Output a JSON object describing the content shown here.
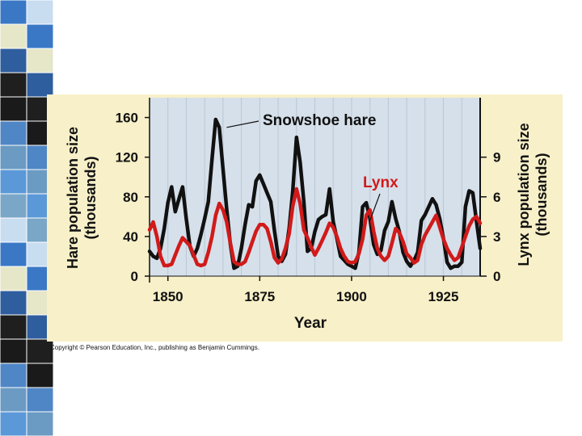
{
  "chart_data": {
    "type": "line",
    "xlabel": "Year",
    "ylabel_left": "Hare population size (thousands)",
    "ylabel_left_lines": [
      "Hare population size",
      "(thousands)"
    ],
    "ylabel_right": "Lynx population size (thousands)",
    "ylabel_right_lines": [
      "Lynx population size",
      "(thousands)"
    ],
    "xlim": [
      1845,
      1935
    ],
    "ylim_left": [
      0,
      180
    ],
    "ylim_right": [
      0,
      13.5
    ],
    "x_ticks": [
      1850,
      1875,
      1900,
      1925
    ],
    "y_ticks_left": [
      0,
      40,
      80,
      120,
      160
    ],
    "y_ticks_right": [
      0,
      3,
      6,
      9
    ],
    "series": [
      {
        "name": "Snowshoe hare",
        "axis": "left",
        "color": "#111111",
        "x": [
          1845,
          1846,
          1847,
          1848,
          1849,
          1850,
          1851,
          1852,
          1853,
          1854,
          1855,
          1856,
          1857,
          1858,
          1859,
          1860,
          1861,
          1862,
          1863,
          1864,
          1865,
          1866,
          1867,
          1868,
          1869,
          1870,
          1871,
          1872,
          1873,
          1874,
          1875,
          1876,
          1877,
          1878,
          1879,
          1880,
          1881,
          1882,
          1883,
          1884,
          1885,
          1886,
          1887,
          1888,
          1889,
          1890,
          1891,
          1892,
          1893,
          1894,
          1895,
          1896,
          1897,
          1898,
          1899,
          1900,
          1901,
          1902,
          1903,
          1904,
          1905,
          1906,
          1907,
          1908,
          1909,
          1910,
          1911,
          1912,
          1913,
          1914,
          1915,
          1916,
          1917,
          1918,
          1919,
          1920,
          1921,
          1922,
          1923,
          1924,
          1925,
          1926,
          1927,
          1928,
          1929,
          1930,
          1931,
          1932,
          1933,
          1934,
          1935
        ],
        "values": [
          25,
          20,
          18,
          28,
          48,
          74,
          90,
          65,
          78,
          90,
          58,
          30,
          20,
          28,
          42,
          58,
          75,
          118,
          158,
          150,
          108,
          68,
          32,
          8,
          10,
          28,
          52,
          72,
          70,
          96,
          102,
          93,
          84,
          75,
          46,
          20,
          15,
          22,
          48,
          86,
          140,
          115,
          75,
          25,
          28,
          45,
          57,
          60,
          62,
          88,
          55,
          38,
          20,
          16,
          12,
          10,
          8,
          24,
          70,
          74,
          58,
          32,
          22,
          26,
          46,
          55,
          75,
          58,
          45,
          24,
          15,
          10,
          16,
          24,
          56,
          62,
          70,
          78,
          72,
          58,
          38,
          14,
          8,
          10,
          10,
          14,
          70,
          86,
          84,
          55,
          28
        ]
      },
      {
        "name": "Lynx",
        "axis": "right",
        "color": "#d11a1a",
        "x": [
          1845,
          1846,
          1847,
          1848,
          1849,
          1850,
          1851,
          1852,
          1853,
          1854,
          1855,
          1856,
          1857,
          1858,
          1859,
          1860,
          1861,
          1862,
          1863,
          1864,
          1865,
          1866,
          1867,
          1868,
          1869,
          1870,
          1871,
          1872,
          1873,
          1874,
          1875,
          1876,
          1877,
          1878,
          1879,
          1880,
          1881,
          1882,
          1883,
          1884,
          1885,
          1886,
          1887,
          1888,
          1889,
          1890,
          1891,
          1892,
          1893,
          1894,
          1895,
          1896,
          1897,
          1898,
          1899,
          1900,
          1901,
          1902,
          1903,
          1904,
          1905,
          1906,
          1907,
          1908,
          1909,
          1910,
          1911,
          1912,
          1913,
          1914,
          1915,
          1916,
          1917,
          1918,
          1919,
          1920,
          1921,
          1922,
          1923,
          1924,
          1925,
          1926,
          1927,
          1928,
          1929,
          1930,
          1931,
          1932,
          1933,
          1934,
          1935
        ],
        "values": [
          3.5,
          4.1,
          3.0,
          1.5,
          0.8,
          0.8,
          0.9,
          1.6,
          2.3,
          2.9,
          2.6,
          2.3,
          1.6,
          0.9,
          0.8,
          0.9,
          1.8,
          3.0,
          4.6,
          5.5,
          5.0,
          4.1,
          2.5,
          1.1,
          0.9,
          0.9,
          1.1,
          1.8,
          2.6,
          3.4,
          3.9,
          3.9,
          3.6,
          2.6,
          1.4,
          1.0,
          1.3,
          2.1,
          3.2,
          5.3,
          6.6,
          5.5,
          3.5,
          2.9,
          2.2,
          1.6,
          2.1,
          2.7,
          3.3,
          4.0,
          3.7,
          3.0,
          2.1,
          1.5,
          1.1,
          1.0,
          1.1,
          1.7,
          2.8,
          4.6,
          5.0,
          3.4,
          2.1,
          1.5,
          1.2,
          1.5,
          2.5,
          3.6,
          3.3,
          2.6,
          1.7,
          1.4,
          1.0,
          1.2,
          2.4,
          3.1,
          3.6,
          4.1,
          4.6,
          3.7,
          2.8,
          2.1,
          1.6,
          1.2,
          1.4,
          2.2,
          3.0,
          3.8,
          4.3,
          4.5,
          4.0
        ]
      }
    ],
    "annotations": [
      {
        "text": "Snowshoe hare",
        "color": "#111111",
        "points_to": {
          "series": "Snowshoe hare",
          "x": 1866,
          "y": 150
        }
      },
      {
        "text": "Lynx",
        "color": "#d11a1a",
        "points_to": {
          "series": "Lynx",
          "x": 1905,
          "y": 4.2
        }
      }
    ]
  },
  "colors": {
    "plot_background": "#d6e0ea",
    "figure_background": "#f7f0c8",
    "hare": "#111111",
    "lynx": "#d11a1a"
  },
  "footer": {
    "copyright": "Copyright © Pearson Education, Inc., publishing as Benjamin Cummings."
  }
}
